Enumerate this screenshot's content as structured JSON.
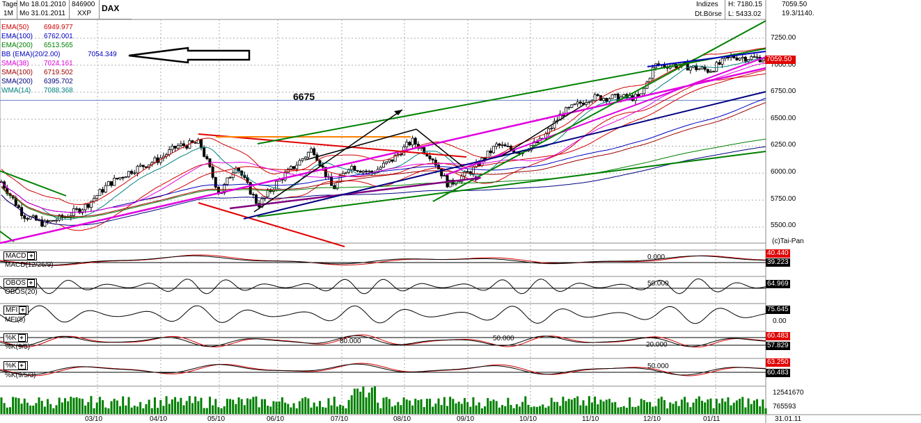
{
  "header": {
    "period_label": "Tage",
    "range_label": "1M",
    "date_from": "Mo 18.01.2010",
    "date_to": "Mo 31.01.2011",
    "wkn": "846900",
    "exchange_code": "XXP",
    "symbol": "DAX",
    "category": "Indizes",
    "market": "Dt.Börse",
    "high": "H: 7180.15",
    "low": "L: 5433.02",
    "last": "7059.50",
    "volume_info": "19.3/1140."
  },
  "indicators": [
    {
      "name": "EMA(50)",
      "value": "6949.977",
      "color": "#d00000"
    },
    {
      "name": "EMA(100)",
      "value": "6762.001",
      "color": "#0000c0"
    },
    {
      "name": "EMA(200)",
      "value": "6513.565",
      "color": "#008000"
    },
    {
      "name": "BB (EMA)(20/2.00)",
      "value": "7054.349",
      "color": "#0000c0"
    },
    {
      "name": "SMA(38)",
      "value": "7024.161",
      "color": "#e000e0"
    },
    {
      "name": "SMA(100)",
      "value": "6719.502",
      "color": "#a00000"
    },
    {
      "name": "SMA(200)",
      "value": "6395.702",
      "color": "#000080"
    },
    {
      "name": "WMA(14)",
      "value": "7088.368",
      "color": "#008080"
    }
  ],
  "annotation_6675": "6675",
  "copyright": "(c)Tai-Pan",
  "price_axis": [
    "7250.00",
    "7000.00",
    "6750.00",
    "6500.00",
    "6250.00",
    "6000.00",
    "5750.00",
    "5500.00"
  ],
  "price_tag": "7059.50",
  "x_axis": [
    "03/10",
    "04/10",
    "05/10",
    "06/10",
    "07/10",
    "08/10",
    "09/10",
    "10/10",
    "11/10",
    "12/10",
    "01/11",
    "31.01.11"
  ],
  "panels": {
    "macd": {
      "label": "MACD",
      "sub": "MACD(12/26/9)",
      "zero_label": "0.000",
      "tag1": "40.440",
      "tag2": "39.223"
    },
    "obos": {
      "label": "OBOS",
      "sub": "OBOS(20)",
      "ref_label": "50.000",
      "tag1": "64.969"
    },
    "mfi": {
      "label": "MFI",
      "sub": "MFI(5)",
      "tag1": "75.645",
      "axis_zero": "0.00"
    },
    "stoch1": {
      "label": "%K",
      "sub": "%K(9/5)",
      "l80": "80.000",
      "l50": "50.000",
      "l20": "20.000",
      "tag1": "60.483",
      "tag2": "57.829"
    },
    "stoch2": {
      "label": "%K",
      "sub": "%K(9/5/3)",
      "l50": "50.000",
      "tag1": "63.250",
      "tag2": "60.483"
    },
    "volume": {
      "top_label": "12541670",
      "mid_label": "765593"
    }
  },
  "chart_data": {
    "type": "candlestick",
    "title": "DAX",
    "ylim": [
      5300,
      7400
    ],
    "y_ticks": [
      5500,
      5750,
      6000,
      6250,
      6500,
      6750,
      7000,
      7250
    ],
    "x_categories": [
      "03/10",
      "04/10",
      "05/10",
      "06/10",
      "07/10",
      "08/10",
      "09/10",
      "10/10",
      "11/10",
      "12/10",
      "01/11"
    ],
    "close_path": [
      [
        "2010-01-18",
        5920
      ],
      [
        "2010-01-29",
        5610
      ],
      [
        "2010-02-08",
        5530
      ],
      [
        "2010-02-19",
        5600
      ],
      [
        "2010-03-01",
        5700
      ],
      [
        "2010-03-12",
        5900
      ],
      [
        "2010-03-24",
        6030
      ],
      [
        "2010-04-06",
        6130
      ],
      [
        "2010-04-15",
        6250
      ],
      [
        "2010-04-26",
        6280
      ],
      [
        "2010-05-06",
        5800
      ],
      [
        "2010-05-14",
        6080
      ],
      [
        "2010-05-25",
        5700
      ],
      [
        "2010-06-04",
        5930
      ],
      [
        "2010-06-14",
        6100
      ],
      [
        "2010-06-21",
        6230
      ],
      [
        "2010-07-01",
        5850
      ],
      [
        "2010-07-09",
        6070
      ],
      [
        "2010-07-20",
        6000
      ],
      [
        "2010-07-30",
        6120
      ],
      [
        "2010-08-09",
        6300
      ],
      [
        "2010-08-19",
        6150
      ],
      [
        "2010-08-27",
        5890
      ],
      [
        "2010-09-08",
        6030
      ],
      [
        "2010-09-20",
        6260
      ],
      [
        "2010-10-01",
        6200
      ],
      [
        "2010-10-12",
        6300
      ],
      [
        "2010-10-22",
        6550
      ],
      [
        "2010-11-05",
        6700
      ],
      [
        "2010-11-16",
        6700
      ],
      [
        "2010-11-30",
        6700
      ],
      [
        "2010-12-07",
        7000
      ],
      [
        "2010-12-20",
        7000
      ],
      [
        "2011-01-03",
        6950
      ],
      [
        "2011-01-14",
        7080
      ],
      [
        "2011-01-31",
        7059.5
      ]
    ],
    "volume": "bars per day, max 12541670"
  }
}
